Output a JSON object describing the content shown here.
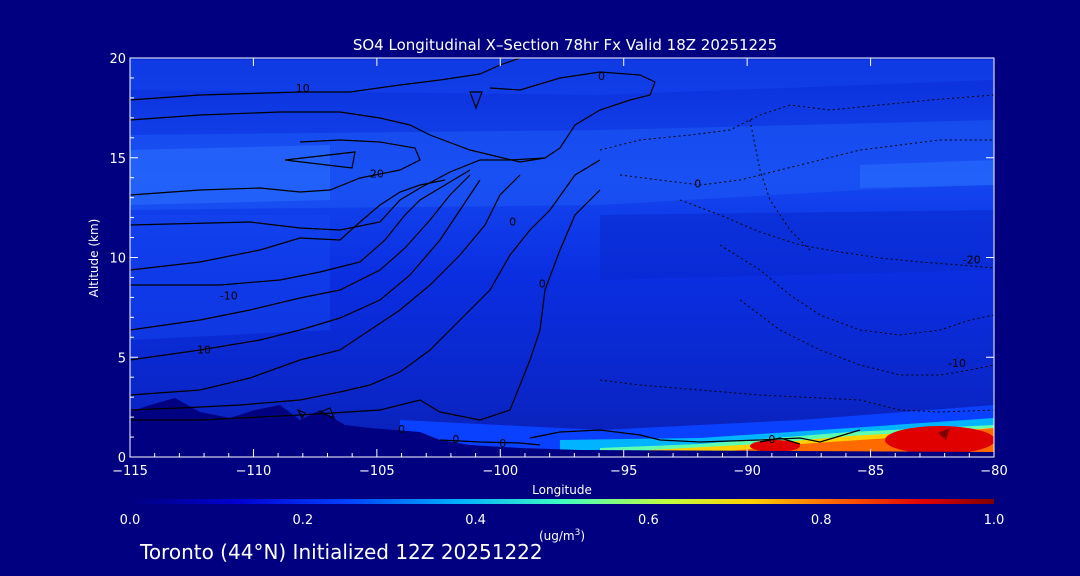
{
  "chart_data": {
    "type": "heatmap",
    "title": "SO4 Longitudinal X–Section 78hr  Fx Valid 18Z 20251225",
    "xlabel": "Longitude",
    "ylabel": "Altitude (km)",
    "xlim": [
      -115,
      -80
    ],
    "ylim": [
      0,
      20
    ],
    "x_ticks": [
      -115,
      -110,
      -105,
      -100,
      -95,
      -90,
      -85,
      -80
    ],
    "y_ticks": [
      0,
      5,
      10,
      15,
      20
    ],
    "x_tick_labels": [
      "−115",
      "−110",
      "−105",
      "−100",
      "−95",
      "−90",
      "−85",
      "−80"
    ],
    "y_tick_labels": [
      "0",
      "5",
      "10",
      "15",
      "20"
    ],
    "colorbar": {
      "min": 0.0,
      "max": 1.0,
      "ticks": [
        "0.0",
        "0.2",
        "0.4",
        "0.6",
        "0.8",
        "1.0"
      ],
      "unit_label": "(ug/m",
      "unit_sup": "3",
      "unit_close": ")"
    },
    "contour_labels": [
      {
        "text": "10",
        "lon": -108.0,
        "alt": 18.3
      },
      {
        "text": "20",
        "lon": -105.0,
        "alt": 14.0
      },
      {
        "text": "-10",
        "lon": -111.0,
        "alt": 7.9
      },
      {
        "text": "10",
        "lon": -112.0,
        "alt": 5.2
      },
      {
        "text": "0",
        "lon": -104.0,
        "alt": 1.2
      },
      {
        "text": "0",
        "lon": -101.8,
        "alt": 0.7
      },
      {
        "text": "0",
        "lon": -99.9,
        "alt": 0.5
      },
      {
        "text": "0",
        "lon": -89.0,
        "alt": 0.7
      },
      {
        "text": "0",
        "lon": -95.9,
        "alt": 18.9
      },
      {
        "text": "0",
        "lon": -92.0,
        "alt": 13.5
      },
      {
        "text": "0",
        "lon": -99.5,
        "alt": 11.6
      },
      {
        "text": "0",
        "lon": -98.3,
        "alt": 8.5
      },
      {
        "text": "-20",
        "lon": -80.9,
        "alt": 9.7
      },
      {
        "text": "-10",
        "lon": -81.5,
        "alt": 4.5
      }
    ]
  },
  "footer": "Toronto (44°N) Initialized 12Z 20251222",
  "colors": {
    "background": "#000080",
    "scale": [
      "#0000b4",
      "#0a32f0",
      "#00c8ff",
      "#96ff64",
      "#ffff00",
      "#ff7800",
      "#dc0000",
      "#8c0000"
    ]
  }
}
